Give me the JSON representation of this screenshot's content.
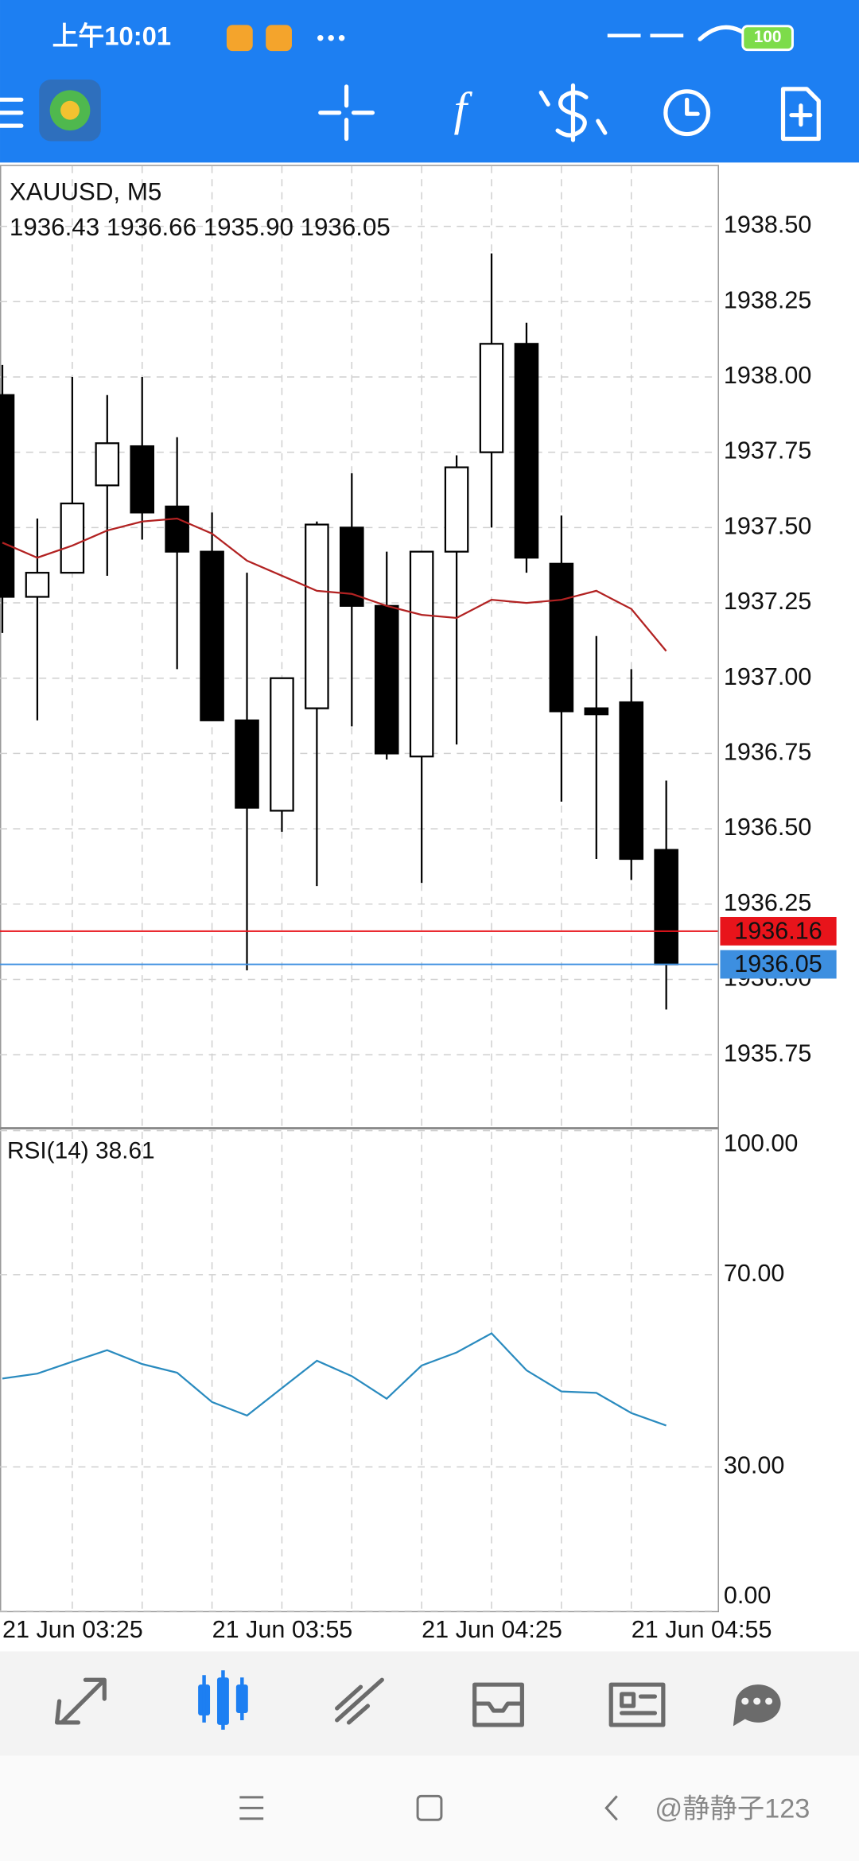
{
  "status_bar": {
    "time": "上午10:01",
    "battery": "100"
  },
  "chart_data": [
    {
      "type": "candlestick",
      "title": "XAUUSD, M5",
      "subtitle": "1936.43 1936.66 1935.90 1936.05",
      "categories": [
        "21 Jun 03:25",
        null,
        null,
        null,
        null,
        null,
        "21 Jun 03:55",
        null,
        null,
        null,
        null,
        null,
        "21 Jun 04:25",
        null,
        null,
        null,
        null,
        null,
        "21 Jun 04:55",
        null
      ],
      "open": [
        1937.94,
        1937.27,
        1937.35,
        1937.64,
        1937.77,
        1937.57,
        1937.42,
        1936.86,
        1936.56,
        1936.9,
        1937.5,
        1937.24,
        1936.74,
        1937.42,
        1937.75,
        1938.11,
        1937.38,
        1936.9,
        1936.92,
        1936.43
      ],
      "high": [
        1938.04,
        1937.53,
        1938.0,
        1937.94,
        1938.0,
        1937.8,
        1937.55,
        1937.35,
        1937.0,
        1937.52,
        1937.68,
        1937.42,
        1937.42,
        1937.74,
        1938.41,
        1938.18,
        1937.54,
        1937.14,
        1937.03,
        1936.66
      ],
      "low": [
        1937.15,
        1936.86,
        1937.35,
        1937.34,
        1937.46,
        1937.03,
        1936.86,
        1936.03,
        1936.49,
        1936.31,
        1936.84,
        1936.73,
        1936.32,
        1936.78,
        1937.5,
        1937.35,
        1936.59,
        1936.4,
        1936.33,
        1935.9
      ],
      "close": [
        1937.27,
        1937.35,
        1937.58,
        1937.78,
        1937.55,
        1937.42,
        1936.86,
        1936.57,
        1937.0,
        1937.51,
        1937.24,
        1936.75,
        1937.42,
        1937.7,
        1938.11,
        1937.4,
        1936.89,
        1936.88,
        1936.4,
        1936.05
      ],
      "up_color": "#ffffff",
      "down_color": "#000000",
      "overlays": [
        {
          "type": "line",
          "color": "#b22222",
          "values": [
            1937.45,
            1937.4,
            1937.44,
            1937.49,
            1937.52,
            1937.53,
            1937.48,
            1937.39,
            1937.34,
            1937.29,
            1937.28,
            1937.24,
            1937.21,
            1937.2,
            1937.26,
            1937.25,
            1937.26,
            1937.29,
            1937.23,
            1937.09
          ]
        }
      ],
      "ask": 1936.16,
      "ask_color": "#e8141b",
      "bid": 1936.05,
      "bid_color": "#3d8fe0",
      "ylim": [
        1935.51,
        1938.7
      ],
      "yticks": [
        {
          "value": 1935.75,
          "label": "1935.75"
        },
        {
          "value": 1936.0,
          "label": "1936.00"
        },
        {
          "value": 1936.25,
          "label": "1936.25"
        },
        {
          "value": 1936.5,
          "label": "1936.50"
        },
        {
          "value": 1936.75,
          "label": "1936.75"
        },
        {
          "value": 1937.0,
          "label": "1937.00"
        },
        {
          "value": 1937.25,
          "label": "1937.25"
        },
        {
          "value": 1937.5,
          "label": "1937.50"
        },
        {
          "value": 1937.75,
          "label": "1937.75"
        },
        {
          "value": 1938.0,
          "label": "1938.00"
        },
        {
          "value": 1938.25,
          "label": "1938.25"
        },
        {
          "value": 1938.5,
          "label": "1938.50"
        }
      ],
      "grid": true
    },
    {
      "type": "line",
      "title": "RSI(14) 38.61",
      "color": "#2a8bbf",
      "values": [
        48.4,
        49.4,
        51.9,
        54.3,
        51.4,
        49.6,
        43.5,
        40.7,
        46.4,
        52.1,
        48.9,
        44.2,
        51.1,
        53.8,
        57.8,
        50.1,
        45.7,
        45.4,
        41.2,
        38.61
      ],
      "ylim": [
        0,
        100
      ],
      "yticks": [
        {
          "value": 0,
          "label": "0.00"
        },
        {
          "value": 30,
          "label": "30.00"
        },
        {
          "value": 70,
          "label": "70.00"
        },
        {
          "value": 100,
          "label": "100.00"
        }
      ],
      "grid": true
    }
  ],
  "watermark": "@静静子123"
}
